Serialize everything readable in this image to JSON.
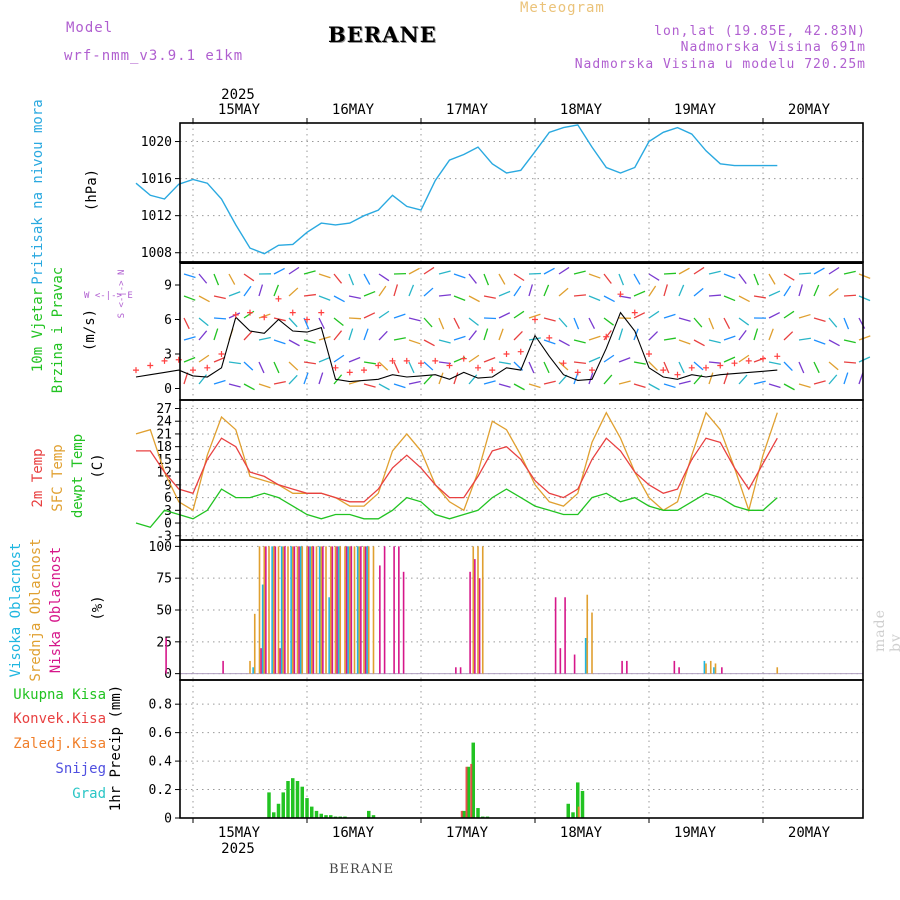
{
  "header": {
    "model_label": "Model",
    "model_name": "wrf-nmm_v3.9.1 e1km",
    "station": "BERANE",
    "product": "Meteogram",
    "lonlat": "lon,lat (19.85E, 42.83N)",
    "elevation": "Nadmorska Visina 691m",
    "model_elevation": "Nadmorska Visina u modelu 720.25m",
    "footer_station": "BERANE",
    "watermark": "made by Angel"
  },
  "time_axis": {
    "year": "2025",
    "days": [
      "15MAY",
      "16MAY",
      "17MAY",
      "18MAY",
      "19MAY",
      "20MAY"
    ],
    "start_hour": 0,
    "end_hour": 135
  },
  "colors": {
    "pressure": "#2aa9e0",
    "temp2m": "#e84040",
    "sfc_temp": "#e0a030",
    "dewpoint": "#22c322",
    "wind_speed": "#000000",
    "gust": "#ff4040",
    "high_cloud": "#1fb6e0",
    "mid_cloud": "#e0a030",
    "low_cloud": "#d6178a",
    "total_precip": "#22c322",
    "conv_precip": "#e84040",
    "frozen_precip": "#f07f2a",
    "snow": "#5050e0",
    "graupel": "#2ac6c6"
  },
  "panels": {
    "pressure": {
      "label": "Pritisak na nivou mora",
      "unit": "(hPa)",
      "ticks": [
        "1008",
        "1012",
        "1016",
        "1020"
      ]
    },
    "wind": {
      "label1": "10m Vjetar",
      "label2": "Brzina i Pravac",
      "unit": "(m/s)",
      "compass": "W <-|-> E",
      "compass_ns": "S <-|-> N",
      "ticks": [
        "0",
        "3",
        "6",
        "9"
      ]
    },
    "temp": {
      "label1": "2m Temp",
      "label2": "SFC Temp",
      "label3": "dewpt Temp",
      "unit": "(C)",
      "ticks": [
        "-3",
        "0",
        "3",
        "6",
        "9",
        "12",
        "15",
        "18",
        "21",
        "24",
        "27"
      ]
    },
    "cloud": {
      "label1": "Visoka Oblacnost",
      "label2": "Srednja Oblacnost",
      "label3": "Niska Oblacnost",
      "unit": "(%)",
      "ticks": [
        "0",
        "25",
        "50",
        "75",
        "100"
      ]
    },
    "precip": {
      "labels": [
        "Ukupna Kisa",
        "Konvek.Kisa",
        "Zaledj.Kisa",
        "Snijeg",
        "Grad"
      ],
      "unit": "1hr Precip (mm)",
      "ticks": [
        "0",
        "0.2",
        "0.4",
        "0.6",
        "0.8"
      ]
    }
  },
  "chart_data": [
    {
      "type": "line",
      "title": "Pritisak na nivou mora",
      "ylabel": "(hPa)",
      "ylim": [
        1007,
        1022
      ],
      "x_hours": [
        0,
        3,
        6,
        9,
        12,
        15,
        18,
        21,
        24,
        27,
        30,
        33,
        36,
        39,
        42,
        45,
        48,
        51,
        54,
        57,
        60,
        63,
        66,
        69,
        72,
        75,
        78,
        81,
        84,
        87,
        90,
        93,
        96,
        99,
        102,
        105,
        108,
        111,
        114,
        117,
        120,
        123,
        126,
        129,
        132,
        135
      ],
      "series": [
        {
          "name": "Pritisak na nivou mora",
          "values": [
            1015.5,
            1014.2,
            1013.8,
            1015.4,
            1015.9,
            1015.5,
            1013.8,
            1011.0,
            1008.5,
            1007.9,
            1008.8,
            1008.9,
            1010.2,
            1011.2,
            1011.0,
            1011.2,
            1012.0,
            1012.6,
            1014.2,
            1013.0,
            1012.6,
            1015.8,
            1018.0,
            1018.6,
            1019.4,
            1017.6,
            1016.6,
            1016.9,
            1018.9,
            1021.0,
            1021.5,
            1021.8,
            1019.4,
            1017.2,
            1016.6,
            1017.2,
            1020.0,
            1021.0,
            1021.5,
            1020.8,
            1019.0,
            1017.6,
            1017.4,
            1017.4,
            1017.4,
            1017.4
          ]
        }
      ]
    },
    {
      "type": "line",
      "title": "10m Vjetar Brzina i Pravac",
      "ylabel": "(m/s)",
      "ylim": [
        -1,
        11
      ],
      "x_hours": [
        0,
        3,
        6,
        9,
        12,
        15,
        18,
        21,
        24,
        27,
        30,
        33,
        36,
        39,
        42,
        45,
        48,
        51,
        54,
        57,
        60,
        63,
        66,
        69,
        72,
        75,
        78,
        81,
        84,
        87,
        90,
        93,
        96,
        99,
        102,
        105,
        108,
        111,
        114,
        117,
        120,
        123,
        126,
        129,
        132,
        135
      ],
      "series": [
        {
          "name": "Brzina",
          "values": [
            1.0,
            1.2,
            1.4,
            1.6,
            1.1,
            1.0,
            1.8,
            6.2,
            5.0,
            4.8,
            6.0,
            5.0,
            4.9,
            5.3,
            0.8,
            0.6,
            0.7,
            0.8,
            1.2,
            1.0,
            1.1,
            1.2,
            0.8,
            1.4,
            0.9,
            1.0,
            1.8,
            1.6,
            4.6,
            2.8,
            1.2,
            0.7,
            0.8,
            3.5,
            6.6,
            5.0,
            1.8,
            1.0,
            0.8,
            1.2,
            1.0,
            1.2,
            1.3,
            1.4,
            1.5,
            1.6
          ]
        },
        {
          "name": "Udari",
          "values": [
            1.6,
            2.0,
            2.4,
            2.5,
            1.6,
            1.8,
            3.0,
            6.4,
            6.6,
            6.2,
            7.8,
            6.6,
            6.0,
            6.6,
            1.8,
            1.4,
            1.6,
            2.0,
            2.4,
            2.4,
            2.2,
            2.4,
            2.0,
            2.6,
            1.8,
            1.6,
            3.0,
            3.2,
            6.0,
            4.4,
            2.2,
            1.4,
            1.6,
            4.5,
            8.2,
            6.6,
            3.0,
            1.6,
            1.2,
            1.8,
            1.8,
            2.0,
            2.2,
            2.4,
            2.6,
            2.8
          ]
        }
      ]
    },
    {
      "type": "line",
      "title": "2m Temp, SFC Temp, dewpt Temp",
      "ylabel": "(C)",
      "ylim": [
        -4,
        29
      ],
      "x_hours": [
        0,
        3,
        6,
        9,
        12,
        15,
        18,
        21,
        24,
        27,
        30,
        33,
        36,
        39,
        42,
        45,
        48,
        51,
        54,
        57,
        60,
        63,
        66,
        69,
        72,
        75,
        78,
        81,
        84,
        87,
        90,
        93,
        96,
        99,
        102,
        105,
        108,
        111,
        114,
        117,
        120,
        123,
        126,
        129,
        132,
        135
      ],
      "series": [
        {
          "name": "2m Temp",
          "values": [
            17,
            17,
            12,
            8,
            7,
            15,
            20,
            18,
            12,
            11,
            9,
            8,
            7,
            7,
            6,
            5,
            5,
            8,
            13,
            16,
            13,
            9,
            6,
            6,
            11,
            17,
            18,
            15,
            10,
            7,
            6,
            8,
            15,
            20,
            17,
            12,
            9,
            7,
            8,
            15,
            20,
            19,
            13,
            8,
            14,
            20
          ]
        },
        {
          "name": "SFC Temp",
          "values": [
            21,
            22,
            12,
            5,
            3,
            16,
            25,
            22,
            11,
            10,
            9,
            7,
            7,
            7,
            6,
            4,
            4,
            7,
            17,
            21,
            17,
            9,
            5,
            3,
            12,
            24,
            22,
            16,
            9,
            5,
            4,
            7,
            19,
            26,
            20,
            12,
            6,
            3,
            5,
            16,
            26,
            22,
            13,
            3,
            16,
            26
          ]
        },
        {
          "name": "dewpt Temp",
          "values": [
            0,
            -1,
            3,
            2,
            1,
            3,
            8,
            6,
            6,
            7,
            6,
            4,
            2,
            1,
            2,
            2,
            1,
            1,
            3,
            6,
            5,
            2,
            1,
            2,
            3,
            6,
            8,
            6,
            4,
            3,
            2,
            2,
            6,
            7,
            5,
            6,
            4,
            3,
            3,
            5,
            7,
            6,
            4,
            3,
            3,
            6
          ]
        }
      ]
    },
    {
      "type": "bar",
      "title": "Visoka / Srednja / Niska Oblacnost",
      "ylabel": "(%)",
      "ylim": [
        -5,
        105
      ],
      "x_hours": [
        6,
        18,
        24,
        25,
        26,
        27,
        28,
        29,
        30,
        31,
        32,
        33,
        34,
        35,
        36,
        37,
        38,
        39,
        40,
        41,
        42,
        43,
        44,
        45,
        46,
        47,
        48,
        49,
        50,
        51,
        52,
        53,
        54,
        55,
        56,
        57,
        58,
        59,
        60,
        61,
        62,
        63,
        64,
        65,
        66,
        67,
        68,
        70,
        71,
        72,
        73,
        74,
        88,
        89,
        90,
        91,
        92,
        93,
        94,
        95,
        96,
        102,
        103,
        113,
        114,
        119,
        120,
        121,
        122,
        123,
        124,
        135
      ],
      "series": [
        {
          "name": "Visoka Oblacnost",
          "values": [
            0,
            0,
            0,
            5,
            0,
            70,
            0,
            100,
            0,
            100,
            0,
            100,
            0,
            100,
            0,
            100,
            0,
            100,
            0,
            60,
            0,
            100,
            0,
            100,
            0,
            100,
            0,
            100,
            0,
            0,
            0,
            0,
            0,
            0,
            0,
            0,
            0,
            0,
            0,
            0,
            0,
            0,
            0,
            0,
            0,
            0,
            0,
            0,
            0,
            0,
            0,
            0,
            0,
            0,
            0,
            0,
            0,
            0,
            0,
            28,
            0,
            0,
            0,
            0,
            0,
            0,
            10,
            0,
            5,
            0,
            0,
            0
          ]
        },
        {
          "name": "Srednja Oblacnost",
          "values": [
            0,
            0,
            10,
            47,
            100,
            100,
            100,
            100,
            100,
            100,
            100,
            100,
            100,
            100,
            100,
            100,
            100,
            100,
            100,
            100,
            100,
            100,
            100,
            100,
            100,
            100,
            100,
            100,
            100,
            0,
            0,
            0,
            0,
            0,
            0,
            0,
            0,
            0,
            0,
            0,
            0,
            0,
            0,
            0,
            0,
            0,
            0,
            0,
            100,
            100,
            100,
            0,
            0,
            0,
            0,
            0,
            0,
            0,
            0,
            62,
            48,
            0,
            0,
            0,
            0,
            0,
            8,
            10,
            8,
            0,
            0,
            5
          ]
        },
        {
          "name": "Niska Oblacnost",
          "values": [
            28,
            10,
            0,
            0,
            20,
            100,
            0,
            100,
            20,
            100,
            0,
            100,
            100,
            0,
            100,
            100,
            0,
            100,
            0,
            100,
            100,
            0,
            100,
            100,
            0,
            100,
            100,
            0,
            0,
            85,
            100,
            0,
            100,
            100,
            80,
            0,
            0,
            0,
            0,
            0,
            0,
            0,
            0,
            0,
            0,
            5,
            5,
            80,
            90,
            75,
            0,
            0,
            60,
            20,
            60,
            0,
            15,
            0,
            0,
            0,
            0,
            10,
            10,
            10,
            5,
            0,
            0,
            0,
            0,
            5,
            0,
            0
          ]
        }
      ]
    },
    {
      "type": "bar",
      "title": "1hr Precip",
      "ylabel": "1hr Precip (mm)",
      "ylim": [
        0,
        0.97
      ],
      "x_hours": [
        28,
        29,
        30,
        31,
        32,
        33,
        34,
        35,
        36,
        37,
        38,
        39,
        40,
        41,
        42,
        43,
        44,
        49,
        50,
        69,
        70,
        71,
        72,
        73,
        74,
        91,
        92,
        93,
        94
      ],
      "series": [
        {
          "name": "Ukupna Kisa",
          "values": [
            0.18,
            0.04,
            0.1,
            0.18,
            0.26,
            0.28,
            0.26,
            0.22,
            0.14,
            0.08,
            0.05,
            0.03,
            0.02,
            0.02,
            0.01,
            0.01,
            0.01,
            0.05,
            0.02,
            0.05,
            0.36,
            0.53,
            0.07,
            0.01,
            0.01,
            0.1,
            0.04,
            0.25,
            0.19
          ]
        },
        {
          "name": "Konvek.Kisa",
          "values": [
            0,
            0,
            0,
            0,
            0,
            0,
            0,
            0,
            0,
            0,
            0,
            0,
            0,
            0,
            0,
            0,
            0,
            0,
            0,
            0.05,
            0.36,
            0.38,
            0,
            0,
            0,
            0,
            0,
            0,
            0
          ]
        },
        {
          "name": "Zaledj.Kisa",
          "values": [
            0,
            0,
            0,
            0,
            0,
            0,
            0,
            0,
            0,
            0,
            0,
            0,
            0,
            0,
            0,
            0,
            0,
            0,
            0,
            0,
            0,
            0,
            0,
            0,
            0,
            0,
            0,
            0.08,
            0
          ]
        },
        {
          "name": "Snijeg",
          "values": [
            0,
            0,
            0,
            0,
            0,
            0,
            0,
            0,
            0,
            0,
            0,
            0,
            0,
            0,
            0,
            0,
            0,
            0,
            0,
            0,
            0,
            0,
            0,
            0,
            0,
            0,
            0,
            0,
            0
          ]
        },
        {
          "name": "Grad",
          "values": [
            0,
            0,
            0,
            0,
            0,
            0,
            0,
            0,
            0,
            0,
            0,
            0,
            0,
            0,
            0,
            0,
            0,
            0,
            0,
            0,
            0,
            0,
            0,
            0,
            0,
            0,
            0,
            0,
            0
          ]
        }
      ]
    }
  ]
}
